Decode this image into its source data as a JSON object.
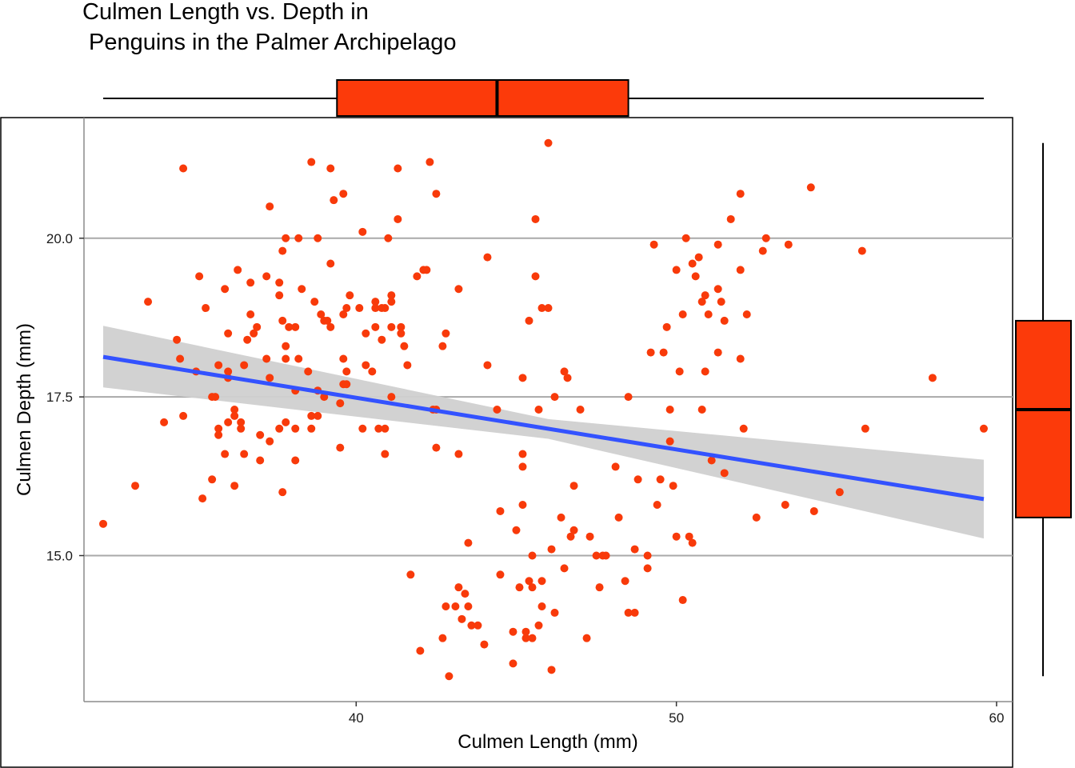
{
  "chart_data": {
    "type": "scatter",
    "title": [
      "Culmen Length vs. Depth in",
      " Penguins in the Palmer Archipelago"
    ],
    "xlabel": "Culmen Length (mm)",
    "ylabel": "Culmen Depth (mm)",
    "xlim": [
      31.5,
      60.5
    ],
    "ylim": [
      12.7,
      21.9
    ],
    "xticks": [
      40,
      50,
      60
    ],
    "xtick_labels": [
      "40",
      "50",
      "60"
    ],
    "yticks": [
      15.0,
      17.5,
      20.0
    ],
    "ytick_labels": [
      "15.0",
      "17.5",
      "20.0"
    ],
    "grid": "horizontal major gridlines",
    "legend": "none",
    "colors": {
      "points": "#f83a0a",
      "trend_line": "#3352ff",
      "confidence_band": "#d0d0d0",
      "box_fill": "#fc3a0a",
      "grid": "#a9a9a9"
    },
    "series": [
      {
        "type": "scatter",
        "points": [
          [
            32.1,
            15.5
          ],
          [
            33.1,
            16.1
          ],
          [
            33.5,
            19.0
          ],
          [
            34.0,
            17.1
          ],
          [
            34.4,
            18.4
          ],
          [
            34.5,
            18.1
          ],
          [
            34.6,
            21.1
          ],
          [
            34.6,
            17.2
          ],
          [
            35.0,
            17.9
          ],
          [
            35.1,
            19.4
          ],
          [
            35.2,
            15.9
          ],
          [
            35.3,
            18.9
          ],
          [
            35.5,
            16.2
          ],
          [
            35.5,
            17.5
          ],
          [
            35.6,
            17.5
          ],
          [
            35.7,
            17.0
          ],
          [
            35.7,
            16.9
          ],
          [
            35.7,
            18.0
          ],
          [
            35.9,
            16.6
          ],
          [
            35.9,
            19.2
          ],
          [
            36.0,
            17.8
          ],
          [
            36.0,
            17.9
          ],
          [
            36.0,
            17.1
          ],
          [
            36.0,
            18.5
          ],
          [
            36.2,
            17.2
          ],
          [
            36.2,
            16.1
          ],
          [
            36.2,
            17.3
          ],
          [
            36.3,
            19.5
          ],
          [
            36.4,
            17.1
          ],
          [
            36.4,
            17.0
          ],
          [
            36.5,
            18.0
          ],
          [
            36.5,
            16.6
          ],
          [
            36.6,
            18.4
          ],
          [
            36.7,
            18.8
          ],
          [
            36.7,
            19.3
          ],
          [
            36.8,
            18.5
          ],
          [
            36.9,
            18.6
          ],
          [
            37.0,
            16.9
          ],
          [
            37.0,
            16.5
          ],
          [
            37.2,
            19.4
          ],
          [
            37.2,
            18.1
          ],
          [
            37.3,
            20.5
          ],
          [
            37.3,
            17.8
          ],
          [
            37.3,
            16.8
          ],
          [
            37.6,
            19.3
          ],
          [
            37.6,
            19.1
          ],
          [
            37.6,
            17.0
          ],
          [
            37.7,
            18.7
          ],
          [
            37.7,
            19.8
          ],
          [
            37.7,
            16.0
          ],
          [
            37.8,
            18.3
          ],
          [
            37.8,
            18.1
          ],
          [
            37.8,
            20.0
          ],
          [
            37.8,
            17.1
          ],
          [
            37.9,
            18.6
          ],
          [
            38.1,
            18.6
          ],
          [
            38.1,
            17.0
          ],
          [
            38.1,
            16.5
          ],
          [
            38.1,
            17.6
          ],
          [
            38.2,
            20.0
          ],
          [
            38.2,
            18.1
          ],
          [
            38.3,
            19.2
          ],
          [
            38.5,
            17.9
          ],
          [
            38.6,
            21.2
          ],
          [
            38.6,
            17.2
          ],
          [
            38.6,
            17.0
          ],
          [
            38.7,
            19.0
          ],
          [
            38.8,
            17.2
          ],
          [
            38.8,
            20.0
          ],
          [
            38.8,
            17.6
          ],
          [
            38.9,
            18.8
          ],
          [
            39.0,
            17.5
          ],
          [
            39.0,
            18.7
          ],
          [
            39.1,
            18.7
          ],
          [
            39.2,
            19.6
          ],
          [
            39.2,
            21.1
          ],
          [
            39.2,
            18.6
          ],
          [
            39.3,
            20.6
          ],
          [
            39.5,
            17.4
          ],
          [
            39.5,
            16.7
          ],
          [
            39.6,
            18.8
          ],
          [
            39.6,
            17.7
          ],
          [
            39.6,
            20.7
          ],
          [
            39.6,
            18.1
          ],
          [
            39.7,
            17.9
          ],
          [
            39.7,
            18.9
          ],
          [
            39.7,
            17.7
          ],
          [
            39.8,
            19.1
          ],
          [
            40.1,
            18.9
          ],
          [
            40.2,
            17.0
          ],
          [
            40.2,
            20.1
          ],
          [
            40.3,
            18.0
          ],
          [
            40.3,
            18.5
          ],
          [
            40.5,
            17.9
          ],
          [
            40.6,
            18.6
          ],
          [
            40.6,
            18.9
          ],
          [
            40.6,
            19.0
          ],
          [
            40.7,
            17.0
          ],
          [
            40.8,
            18.9
          ],
          [
            40.8,
            18.4
          ],
          [
            40.9,
            17.0
          ],
          [
            40.9,
            16.6
          ],
          [
            40.9,
            18.9
          ],
          [
            41.0,
            20.0
          ],
          [
            41.1,
            17.5
          ],
          [
            41.1,
            18.6
          ],
          [
            41.1,
            19.0
          ],
          [
            41.1,
            19.1
          ],
          [
            41.3,
            21.1
          ],
          [
            41.3,
            20.3
          ],
          [
            41.4,
            18.6
          ],
          [
            41.4,
            18.5
          ],
          [
            41.5,
            18.3
          ],
          [
            41.6,
            18.0
          ],
          [
            41.7,
            14.7
          ],
          [
            41.9,
            19.4
          ],
          [
            42.0,
            13.5
          ],
          [
            42.1,
            19.5
          ],
          [
            42.2,
            19.5
          ],
          [
            42.3,
            21.2
          ],
          [
            42.4,
            17.3
          ],
          [
            42.5,
            20.7
          ],
          [
            42.5,
            17.3
          ],
          [
            42.5,
            16.7
          ],
          [
            42.7,
            13.7
          ],
          [
            42.7,
            18.3
          ],
          [
            42.8,
            14.2
          ],
          [
            42.8,
            18.5
          ],
          [
            42.9,
            13.1
          ],
          [
            43.1,
            14.2
          ],
          [
            43.2,
            16.6
          ],
          [
            43.2,
            14.5
          ],
          [
            43.2,
            19.2
          ],
          [
            43.3,
            14.0
          ],
          [
            43.4,
            14.4
          ],
          [
            43.5,
            15.2
          ],
          [
            43.5,
            14.2
          ],
          [
            43.6,
            13.9
          ],
          [
            43.8,
            13.9
          ],
          [
            44.0,
            13.6
          ],
          [
            44.1,
            18.0
          ],
          [
            44.1,
            19.7
          ],
          [
            44.4,
            17.3
          ],
          [
            44.5,
            14.7
          ],
          [
            44.5,
            15.7
          ],
          [
            44.9,
            13.8
          ],
          [
            44.9,
            13.3
          ],
          [
            45.0,
            15.4
          ],
          [
            45.1,
            14.5
          ],
          [
            45.2,
            17.8
          ],
          [
            45.2,
            15.8
          ],
          [
            45.2,
            16.6
          ],
          [
            45.2,
            16.4
          ],
          [
            45.3,
            13.8
          ],
          [
            45.3,
            13.7
          ],
          [
            45.4,
            14.6
          ],
          [
            45.4,
            18.7
          ],
          [
            45.5,
            13.7
          ],
          [
            45.5,
            14.5
          ],
          [
            45.5,
            15.0
          ],
          [
            45.6,
            20.3
          ],
          [
            45.6,
            19.4
          ],
          [
            45.7,
            13.9
          ],
          [
            45.7,
            17.3
          ],
          [
            45.8,
            14.2
          ],
          [
            45.8,
            14.6
          ],
          [
            45.8,
            18.9
          ],
          [
            46.0,
            21.5
          ],
          [
            46.0,
            18.9
          ],
          [
            46.1,
            15.1
          ],
          [
            46.1,
            13.2
          ],
          [
            46.2,
            14.1
          ],
          [
            46.2,
            17.5
          ],
          [
            46.4,
            15.6
          ],
          [
            46.5,
            17.9
          ],
          [
            46.5,
            14.8
          ],
          [
            46.6,
            17.8
          ],
          [
            46.7,
            15.3
          ],
          [
            46.8,
            16.1
          ],
          [
            46.8,
            15.4
          ],
          [
            47.0,
            17.3
          ],
          [
            47.2,
            13.7
          ],
          [
            47.3,
            15.3
          ],
          [
            47.5,
            15.0
          ],
          [
            47.6,
            14.5
          ],
          [
            47.7,
            15.0
          ],
          [
            47.8,
            15.0
          ],
          [
            48.1,
            16.4
          ],
          [
            48.2,
            15.6
          ],
          [
            48.4,
            14.6
          ],
          [
            48.5,
            14.1
          ],
          [
            48.5,
            17.5
          ],
          [
            48.7,
            15.1
          ],
          [
            48.7,
            14.1
          ],
          [
            48.8,
            16.2
          ],
          [
            49.1,
            14.8
          ],
          [
            49.1,
            15.0
          ],
          [
            49.2,
            18.2
          ],
          [
            49.3,
            19.9
          ],
          [
            49.4,
            15.8
          ],
          [
            49.5,
            16.2
          ],
          [
            49.6,
            18.2
          ],
          [
            49.7,
            18.6
          ],
          [
            49.8,
            17.3
          ],
          [
            49.8,
            16.8
          ],
          [
            49.9,
            16.1
          ],
          [
            50.0,
            19.5
          ],
          [
            50.0,
            15.3
          ],
          [
            50.1,
            17.9
          ],
          [
            50.2,
            18.8
          ],
          [
            50.2,
            14.3
          ],
          [
            50.3,
            20.0
          ],
          [
            50.4,
            15.3
          ],
          [
            50.5,
            19.6
          ],
          [
            50.5,
            15.2
          ],
          [
            50.6,
            19.4
          ],
          [
            50.7,
            19.7
          ],
          [
            50.8,
            17.3
          ],
          [
            50.8,
            19.0
          ],
          [
            50.9,
            17.9
          ],
          [
            50.9,
            19.1
          ],
          [
            51.0,
            18.8
          ],
          [
            51.1,
            16.5
          ],
          [
            51.3,
            19.2
          ],
          [
            51.3,
            18.2
          ],
          [
            51.3,
            19.9
          ],
          [
            51.4,
            19.0
          ],
          [
            51.5,
            16.3
          ],
          [
            51.5,
            18.7
          ],
          [
            51.7,
            20.3
          ],
          [
            52.0,
            19.5
          ],
          [
            52.0,
            18.1
          ],
          [
            52.0,
            20.7
          ],
          [
            52.1,
            17.0
          ],
          [
            52.2,
            18.8
          ],
          [
            52.5,
            15.6
          ],
          [
            52.7,
            19.8
          ],
          [
            52.8,
            20.0
          ],
          [
            53.4,
            15.8
          ],
          [
            53.5,
            19.9
          ],
          [
            54.2,
            20.8
          ],
          [
            54.3,
            15.7
          ],
          [
            55.1,
            16.0
          ],
          [
            55.8,
            19.8
          ],
          [
            55.9,
            17.0
          ],
          [
            58.0,
            17.8
          ],
          [
            59.6,
            17.0
          ]
        ]
      },
      {
        "type": "line",
        "regression": {
          "x": [
            32.1,
            59.6
          ],
          "y": [
            18.13,
            15.89
          ]
        },
        "confidence_band": {
          "x": [
            32.1,
            46.0,
            59.6
          ],
          "upper": [
            18.62,
            17.15,
            16.51
          ],
          "lower": [
            17.65,
            16.84,
            15.27
          ]
        }
      }
    ],
    "marginal_x_boxplot": {
      "whisker_low": 32.1,
      "q1": 39.4,
      "median": 44.4,
      "q3": 48.5,
      "whisker_high": 59.6
    },
    "marginal_y_boxplot": {
      "whisker_low": 13.1,
      "q1": 15.6,
      "median": 17.3,
      "q3": 18.7,
      "whisker_high": 21.5
    }
  }
}
